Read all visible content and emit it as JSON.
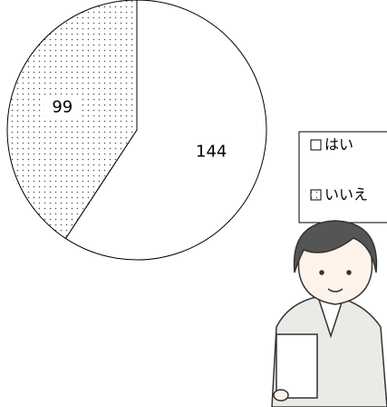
{
  "chart_data": {
    "type": "pie",
    "categories": [
      "はい",
      "いいえ"
    ],
    "values": [
      144,
      99
    ],
    "colors": [
      "#ffffff",
      "#ffffff"
    ],
    "legend": "right"
  }
}
